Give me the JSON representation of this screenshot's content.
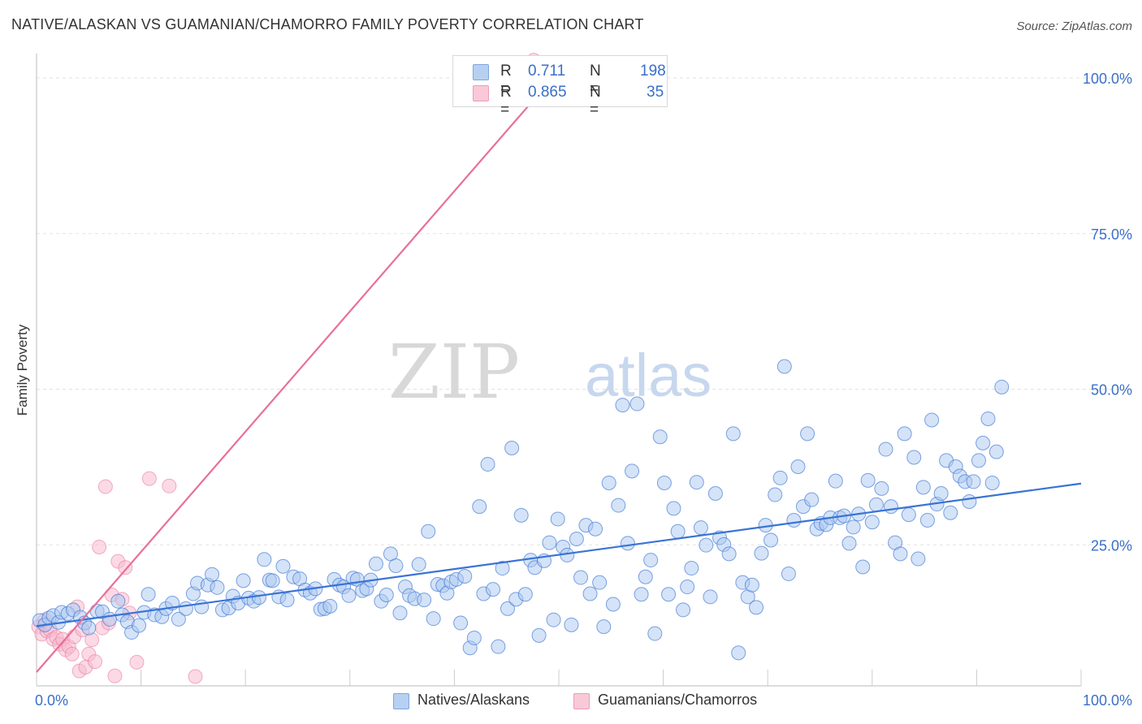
{
  "title": "NATIVE/ALASKAN VS GUAMANIAN/CHAMORRO FAMILY POVERTY CORRELATION CHART",
  "source": "Source: ZipAtlas.com",
  "watermark": {
    "zip": "ZIP",
    "atlas": "atlas"
  },
  "colors": {
    "blue": "#3a73d4",
    "blue_fill": "#a9c8f0",
    "pink": "#e8709a",
    "pink_fill": "#f7bcd0",
    "tick_label": "#3a6fc9"
  },
  "legend": {
    "rows": [
      {
        "r_label": "R =",
        "r_value": "0.711",
        "n_label": "N =",
        "n_value": "198"
      },
      {
        "r_label": "R =",
        "r_value": "0.865",
        "n_label": "N =",
        "n_value": "35"
      }
    ]
  },
  "bottom_legend": [
    "Natives/Alaskans",
    "Guamanians/Chamorros"
  ],
  "chart_data": {
    "type": "scatter",
    "title": "NATIVE/ALASKAN VS GUAMANIAN/CHAMORRO FAMILY POVERTY CORRELATION CHART",
    "xlabel": "",
    "ylabel": "Family Poverty",
    "xlim": [
      0,
      100
    ],
    "ylim": [
      0,
      100
    ],
    "x_tick_labels": [
      "0.0%",
      "100.0%"
    ],
    "y_tick_labels": [
      "25.0%",
      "50.0%",
      "75.0%",
      "100.0%"
    ],
    "y_ticks": [
      25,
      50,
      75,
      100
    ],
    "grid": true,
    "legend_position": "top-center",
    "series": [
      {
        "name": "Natives/Alaskans",
        "R": 0.711,
        "N": 198,
        "trendline": [
          [
            0,
            9.6
          ],
          [
            100,
            32.5
          ]
        ],
        "points": [
          [
            0.3,
            10.5
          ],
          [
            0.8,
            9.8
          ],
          [
            1.2,
            10.9
          ],
          [
            1.6,
            11.3
          ],
          [
            2.1,
            10.2
          ],
          [
            2.4,
            11.8
          ],
          [
            3.0,
            11.6
          ],
          [
            3.5,
            12.2
          ],
          [
            4.2,
            11.0
          ],
          [
            4.6,
            10.1
          ],
          [
            5.0,
            9.3
          ],
          [
            5.8,
            12.0
          ],
          [
            6.3,
            11.9
          ],
          [
            7.0,
            10.7
          ],
          [
            7.8,
            13.6
          ],
          [
            8.2,
            11.4
          ],
          [
            8.7,
            10.3
          ],
          [
            9.1,
            8.6
          ],
          [
            9.8,
            9.7
          ],
          [
            10.3,
            11.8
          ],
          [
            10.7,
            14.7
          ],
          [
            11.3,
            11.4
          ],
          [
            12.0,
            11.1
          ],
          [
            12.4,
            12.4
          ],
          [
            13.0,
            13.3
          ],
          [
            13.6,
            10.7
          ],
          [
            14.3,
            12.4
          ],
          [
            15.0,
            14.8
          ],
          [
            15.4,
            16.5
          ],
          [
            15.8,
            12.7
          ],
          [
            16.4,
            16.2
          ],
          [
            16.8,
            17.9
          ],
          [
            17.3,
            15.8
          ],
          [
            17.8,
            12.2
          ],
          [
            18.4,
            12.5
          ],
          [
            18.8,
            14.4
          ],
          [
            19.3,
            13.3
          ],
          [
            19.8,
            16.9
          ],
          [
            20.3,
            14.1
          ],
          [
            20.8,
            13.6
          ],
          [
            21.3,
            14.2
          ],
          [
            21.8,
            20.3
          ],
          [
            22.3,
            17.0
          ],
          [
            22.6,
            16.9
          ],
          [
            23.2,
            14.3
          ],
          [
            23.6,
            19.2
          ],
          [
            24.0,
            13.8
          ],
          [
            24.6,
            17.5
          ],
          [
            25.2,
            17.2
          ],
          [
            25.7,
            15.4
          ],
          [
            26.2,
            14.9
          ],
          [
            26.7,
            15.6
          ],
          [
            27.2,
            12.3
          ],
          [
            27.6,
            12.4
          ],
          [
            28.1,
            12.8
          ],
          [
            28.5,
            17.1
          ],
          [
            29.0,
            16.2
          ],
          [
            29.4,
            15.9
          ],
          [
            29.9,
            14.5
          ],
          [
            30.3,
            17.3
          ],
          [
            30.7,
            17.1
          ],
          [
            31.2,
            15.3
          ],
          [
            31.6,
            15.6
          ],
          [
            32.0,
            17.0
          ],
          [
            32.5,
            19.6
          ],
          [
            33.0,
            13.6
          ],
          [
            33.5,
            14.6
          ],
          [
            33.9,
            21.2
          ],
          [
            34.4,
            19.3
          ],
          [
            34.8,
            11.7
          ],
          [
            35.3,
            15.9
          ],
          [
            35.7,
            14.5
          ],
          [
            36.2,
            14.0
          ],
          [
            36.6,
            19.5
          ],
          [
            37.1,
            13.8
          ],
          [
            37.5,
            24.8
          ],
          [
            38.0,
            10.8
          ],
          [
            38.4,
            16.3
          ],
          [
            38.9,
            16.1
          ],
          [
            39.3,
            14.9
          ],
          [
            39.7,
            16.7
          ],
          [
            40.2,
            17.1
          ],
          [
            40.6,
            10.1
          ],
          [
            41.0,
            17.6
          ],
          [
            41.5,
            6.1
          ],
          [
            41.9,
            7.7
          ],
          [
            42.4,
            28.8
          ],
          [
            42.8,
            14.8
          ],
          [
            43.2,
            35.6
          ],
          [
            43.7,
            15.5
          ],
          [
            44.2,
            6.3
          ],
          [
            44.6,
            18.9
          ],
          [
            45.1,
            12.4
          ],
          [
            45.5,
            38.2
          ],
          [
            45.9,
            13.9
          ],
          [
            46.4,
            27.4
          ],
          [
            46.8,
            14.7
          ],
          [
            47.3,
            20.2
          ],
          [
            47.7,
            19.0
          ],
          [
            48.1,
            8.1
          ],
          [
            48.6,
            20.1
          ],
          [
            49.1,
            23.0
          ],
          [
            49.5,
            10.6
          ],
          [
            49.9,
            26.8
          ],
          [
            50.4,
            22.3
          ],
          [
            50.8,
            21.0
          ],
          [
            51.2,
            9.8
          ],
          [
            51.7,
            23.6
          ],
          [
            52.1,
            17.4
          ],
          [
            52.6,
            25.8
          ],
          [
            53.0,
            14.8
          ],
          [
            53.5,
            25.2
          ],
          [
            53.9,
            16.6
          ],
          [
            54.3,
            9.5
          ],
          [
            54.8,
            32.6
          ],
          [
            55.2,
            13.1
          ],
          [
            55.7,
            29.0
          ],
          [
            56.1,
            45.1
          ],
          [
            56.6,
            22.9
          ],
          [
            57.0,
            34.5
          ],
          [
            57.5,
            45.3
          ],
          [
            57.9,
            14.7
          ],
          [
            58.3,
            17.5
          ],
          [
            58.8,
            20.2
          ],
          [
            59.2,
            8.4
          ],
          [
            59.7,
            40.0
          ],
          [
            60.1,
            32.6
          ],
          [
            60.5,
            14.7
          ],
          [
            61.0,
            28.5
          ],
          [
            61.4,
            24.8
          ],
          [
            61.9,
            12.2
          ],
          [
            62.3,
            15.9
          ],
          [
            62.7,
            18.9
          ],
          [
            63.2,
            32.7
          ],
          [
            63.6,
            25.4
          ],
          [
            64.1,
            22.6
          ],
          [
            64.5,
            14.3
          ],
          [
            65.0,
            30.9
          ],
          [
            65.4,
            23.8
          ],
          [
            65.8,
            22.7
          ],
          [
            66.3,
            21.2
          ],
          [
            66.7,
            40.5
          ],
          [
            67.2,
            5.3
          ],
          [
            67.6,
            16.6
          ],
          [
            68.1,
            14.3
          ],
          [
            68.5,
            16.2
          ],
          [
            68.9,
            12.6
          ],
          [
            69.4,
            21.3
          ],
          [
            69.8,
            25.8
          ],
          [
            70.3,
            23.4
          ],
          [
            70.7,
            30.7
          ],
          [
            71.2,
            33.4
          ],
          [
            71.6,
            51.3
          ],
          [
            72.0,
            18.0
          ],
          [
            72.5,
            26.6
          ],
          [
            72.9,
            35.2
          ],
          [
            73.4,
            28.8
          ],
          [
            73.8,
            40.5
          ],
          [
            74.2,
            29.9
          ],
          [
            74.7,
            25.2
          ],
          [
            75.1,
            26.1
          ],
          [
            75.6,
            25.9
          ],
          [
            76.0,
            27.0
          ],
          [
            76.5,
            32.9
          ],
          [
            76.9,
            27.0
          ],
          [
            77.3,
            27.3
          ],
          [
            77.8,
            22.9
          ],
          [
            78.2,
            25.5
          ],
          [
            78.7,
            27.6
          ],
          [
            79.1,
            19.1
          ],
          [
            79.6,
            33.0
          ],
          [
            80.0,
            26.3
          ],
          [
            80.4,
            29.1
          ],
          [
            80.9,
            31.7
          ],
          [
            81.3,
            38.0
          ],
          [
            81.8,
            28.8
          ],
          [
            82.2,
            23.0
          ],
          [
            82.7,
            21.2
          ],
          [
            83.1,
            40.5
          ],
          [
            83.5,
            27.5
          ],
          [
            84.0,
            36.7
          ],
          [
            84.4,
            20.4
          ],
          [
            84.9,
            31.9
          ],
          [
            85.3,
            26.6
          ],
          [
            85.7,
            42.7
          ],
          [
            86.2,
            29.2
          ],
          [
            86.6,
            30.9
          ],
          [
            87.1,
            36.2
          ],
          [
            87.5,
            27.8
          ],
          [
            88.0,
            35.2
          ],
          [
            88.4,
            33.7
          ],
          [
            88.9,
            32.8
          ],
          [
            89.3,
            29.6
          ],
          [
            89.7,
            32.8
          ],
          [
            90.2,
            36.2
          ],
          [
            90.6,
            39.0
          ],
          [
            91.1,
            42.9
          ],
          [
            91.5,
            32.6
          ],
          [
            91.9,
            37.6
          ],
          [
            92.4,
            48.0
          ]
        ]
      },
      {
        "name": "Guamanians/Chamorros",
        "R": 0.865,
        "N": 35,
        "trendline": [
          [
            0,
            2.2
          ],
          [
            50.5,
            100
          ]
        ],
        "points": [
          [
            0.2,
            9.5
          ],
          [
            0.5,
            8.3
          ],
          [
            0.8,
            10.6
          ],
          [
            1.0,
            8.8
          ],
          [
            1.3,
            9.0
          ],
          [
            1.6,
            7.5
          ],
          [
            1.9,
            7.8
          ],
          [
            2.2,
            6.7
          ],
          [
            2.5,
            7.5
          ],
          [
            2.8,
            5.8
          ],
          [
            3.1,
            6.3
          ],
          [
            3.4,
            5.1
          ],
          [
            3.6,
            7.9
          ],
          [
            3.9,
            12.7
          ],
          [
            4.1,
            2.4
          ],
          [
            4.4,
            9.0
          ],
          [
            4.7,
            3.0
          ],
          [
            5.0,
            5.1
          ],
          [
            5.3,
            7.4
          ],
          [
            5.6,
            3.9
          ],
          [
            6.0,
            22.3
          ],
          [
            6.3,
            9.3
          ],
          [
            6.6,
            32.0
          ],
          [
            6.9,
            10.1
          ],
          [
            7.2,
            14.6
          ],
          [
            7.5,
            1.6
          ],
          [
            7.8,
            20.0
          ],
          [
            8.2,
            13.9
          ],
          [
            8.5,
            19.0
          ],
          [
            8.9,
            11.7
          ],
          [
            9.6,
            3.8
          ],
          [
            10.8,
            33.3
          ],
          [
            12.7,
            32.1
          ],
          [
            15.2,
            1.5
          ],
          [
            47.6,
            100.5
          ]
        ]
      }
    ]
  }
}
